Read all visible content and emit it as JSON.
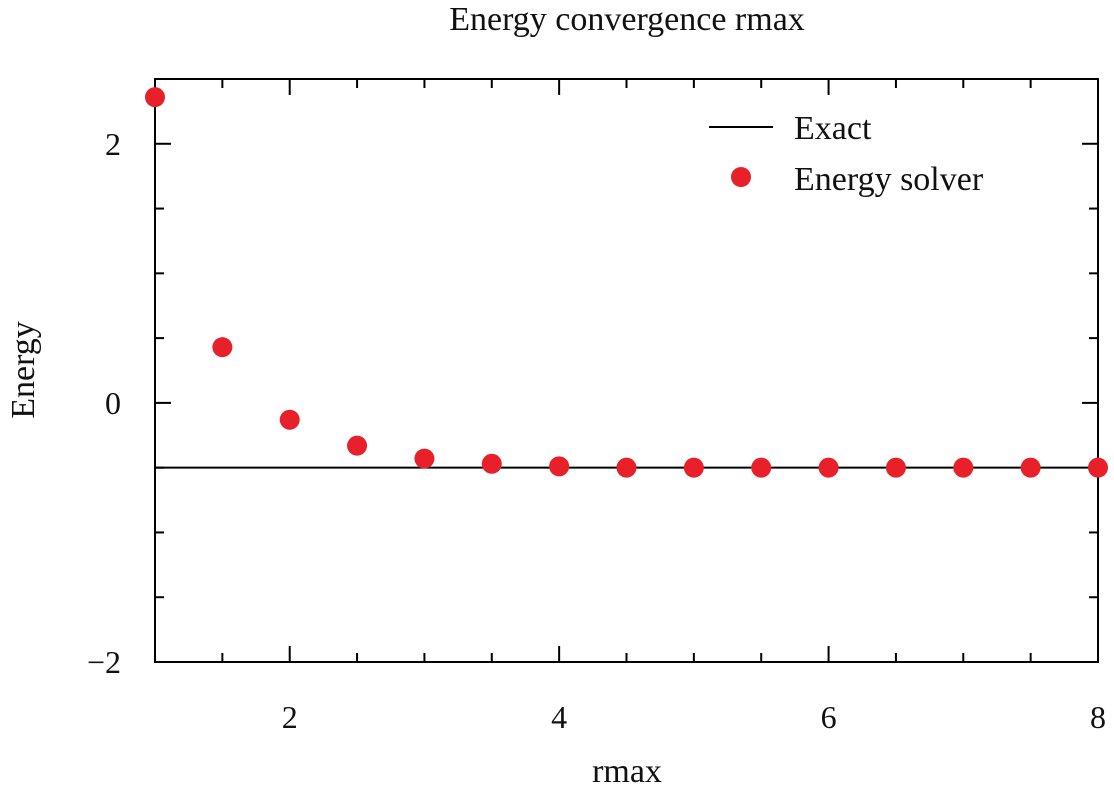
{
  "chart_data": {
    "type": "scatter",
    "title": "Energy convergence rmax",
    "xlabel": "rmax",
    "ylabel": "Energy",
    "xlim": [
      1,
      8
    ],
    "ylim": [
      -2,
      2.5
    ],
    "xticks": [
      2,
      4,
      6,
      8
    ],
    "xtick_labels": [
      "2",
      "4",
      "6",
      "8"
    ],
    "yticks": [
      -2,
      0,
      2
    ],
    "ytick_labels": [
      "−2",
      "0",
      "2"
    ],
    "x_minor_step": 0.5,
    "y_minor_step": 0.5,
    "grid": false,
    "legend_position": "top-right",
    "series": [
      {
        "name": "Exact",
        "kind": "line",
        "color": "#000000",
        "x": [
          1,
          8
        ],
        "y": [
          -0.5,
          -0.5
        ]
      },
      {
        "name": "Energy solver",
        "kind": "points",
        "color": "#e8202a",
        "x": [
          1.0,
          1.5,
          2.0,
          2.5,
          3.0,
          3.5,
          4.0,
          4.5,
          5.0,
          5.5,
          6.0,
          6.5,
          7.0,
          7.5,
          8.0
        ],
        "y": [
          2.36,
          0.43,
          -0.13,
          -0.33,
          -0.43,
          -0.47,
          -0.49,
          -0.5,
          -0.5,
          -0.5,
          -0.5,
          -0.5,
          -0.5,
          -0.5,
          -0.5
        ]
      }
    ]
  }
}
